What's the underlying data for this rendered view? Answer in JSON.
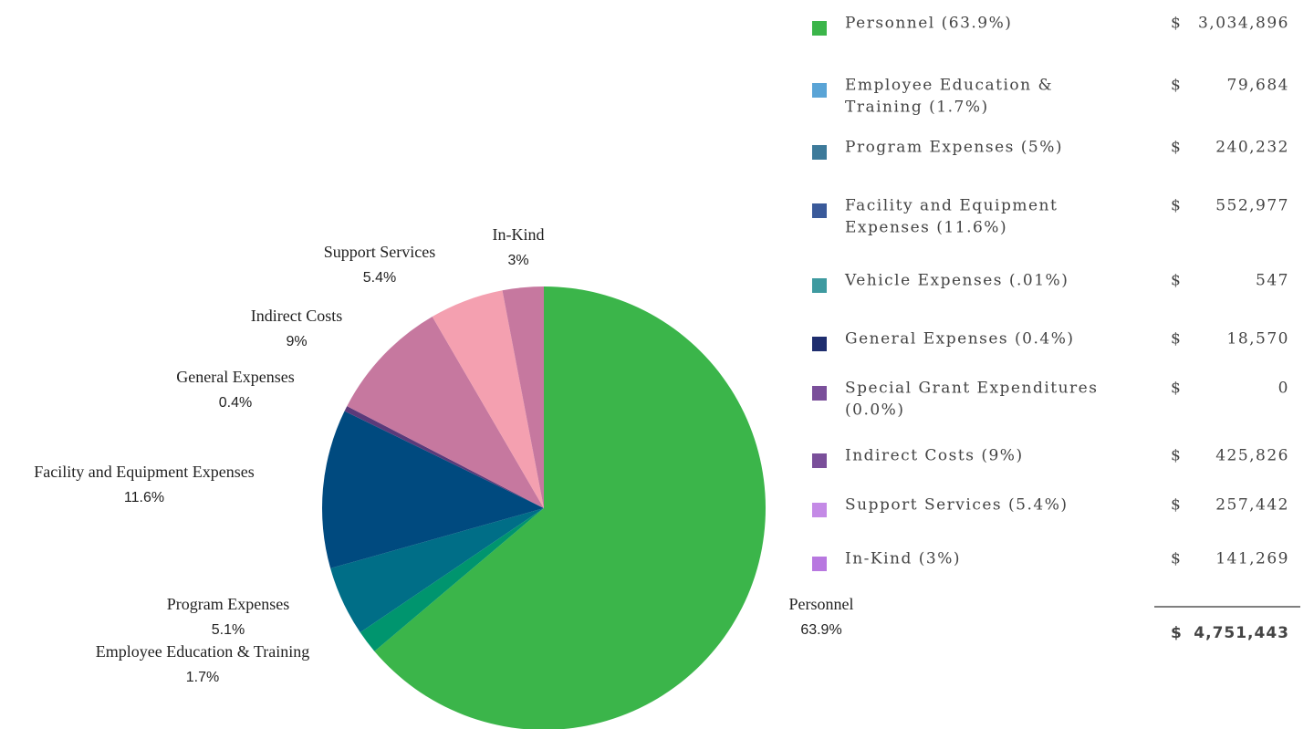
{
  "chart_data": {
    "type": "pie",
    "categories": [
      "Personnel",
      "Employee Education & Training",
      "Program Expenses",
      "Facility and Equipment Expenses",
      "General Expenses",
      "Indirect Costs",
      "Support Services",
      "In-Kind"
    ],
    "values": [
      63.9,
      1.7,
      5.1,
      11.6,
      0.4,
      9,
      5.4,
      3
    ],
    "value_labels": [
      "63.9%",
      "1.7%",
      "5.1%",
      "11.6%",
      "0.4%",
      "9%",
      "5.4%",
      "3%"
    ],
    "colors": [
      "#3bb54a",
      "#00956e",
      "#006e87",
      "#004a7f",
      "#5b3a7a",
      "#c6789f",
      "#f4a0b0",
      "#c6789f"
    ]
  },
  "table": {
    "currency_symbol": "$",
    "rows": [
      {
        "label_lines": [
          "Personnel (63.9%)"
        ],
        "color": "#3bb54a",
        "amount": "3,034,896"
      },
      {
        "label_lines": [
          "Employee Education &",
          "Training (1.7%)"
        ],
        "color": "#5aa4d6",
        "amount": "79,684"
      },
      {
        "label_lines": [
          "Program Expenses (5%)"
        ],
        "color": "#3d7a9a",
        "amount": "240,232"
      },
      {
        "label_lines": [
          "Facility and Equipment",
          "Expenses (11.6%)"
        ],
        "color": "#3a5a9a",
        "amount": "552,977"
      },
      {
        "label_lines": [
          "Vehicle Expenses (.01%)"
        ],
        "color": "#3e9aa0",
        "amount": "547"
      },
      {
        "label_lines": [
          "General Expenses (0.4%)"
        ],
        "color": "#1e2d6e",
        "amount": "18,570"
      },
      {
        "label_lines": [
          "Special Grant Expenditures",
          "(0.0%)"
        ],
        "color": "#7a4f9a",
        "amount": "0"
      },
      {
        "label_lines": [
          "Indirect Costs (9%)"
        ],
        "color": "#7a4f9a",
        "amount": "425,826"
      },
      {
        "label_lines": [
          "Support Services (5.4%)"
        ],
        "color": "#c48ae6",
        "amount": "257,442"
      },
      {
        "label_lines": [
          "In-Kind (3%)"
        ],
        "color": "#b878e0",
        "amount": "141,269"
      }
    ],
    "total": "4,751,443"
  }
}
